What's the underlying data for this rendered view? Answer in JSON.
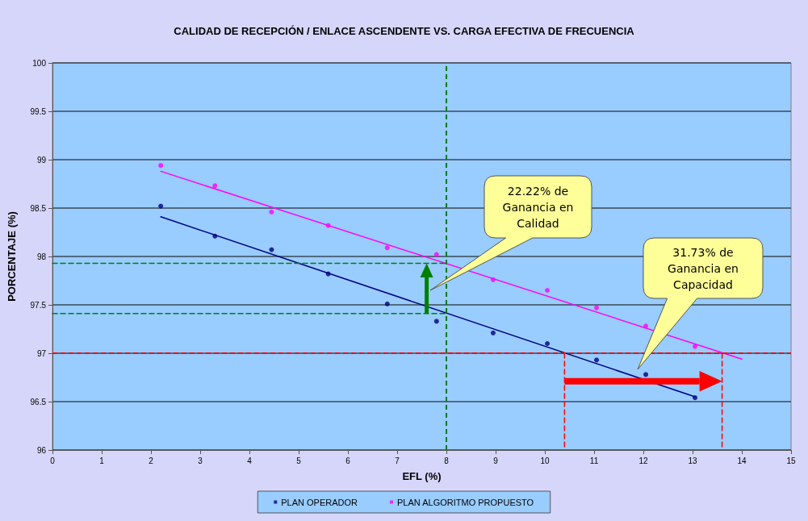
{
  "chart_data": {
    "type": "scatter",
    "title": "CALIDAD DE RECEPCIÓN / ENLACE ASCENDENTE VS. CARGA EFECTIVA DE FRECUENCIA",
    "xlabel": "EFL (%)",
    "ylabel": "PORCENTAJE (%)",
    "xlim": [
      0,
      15
    ],
    "xticks": [
      0,
      1,
      2,
      3,
      4,
      5,
      6,
      7,
      8,
      9,
      10,
      11,
      12,
      13,
      14,
      15
    ],
    "ylim": [
      96,
      100
    ],
    "yticks": [
      96,
      96.5,
      97,
      97.5,
      98,
      98.5,
      99,
      99.5,
      100
    ],
    "grid": "y",
    "legend": "bottom",
    "marker": "circle",
    "series": [
      {
        "name": "PLAN OPERADOR",
        "color": "#000080",
        "x": [
          2.2,
          3.3,
          4.45,
          5.6,
          6.8,
          7.8,
          8.95,
          10.05,
          11.05,
          12.05,
          13.05
        ],
        "values": [
          98.52,
          98.21,
          98.07,
          97.82,
          97.51,
          97.33,
          97.21,
          97.1,
          96.93,
          96.78,
          96.54
        ]
      },
      {
        "name": "PLAN ALGORITMO PROPUESTO",
        "color": "#ff00ff",
        "x": [
          2.2,
          3.3,
          4.45,
          5.6,
          6.8,
          7.8,
          8.95,
          10.05,
          11.05,
          12.05,
          13.05
        ],
        "values": [
          98.94,
          98.73,
          98.46,
          98.32,
          98.09,
          98.02,
          97.76,
          97.65,
          97.47,
          97.28,
          97.07
        ]
      },
      {
        "type": "line",
        "marker": "none",
        "color": "#000080",
        "line_style": "solid",
        "x": [
          2.2,
          13.05
        ],
        "values": [
          98.41,
          96.55
        ]
      },
      {
        "type": "line",
        "marker": "none",
        "color": "#ff00ff",
        "line_style": "solid",
        "x": [
          2.2,
          14.0
        ],
        "values": [
          98.88,
          96.94
        ]
      },
      {
        "type": "line",
        "marker": "none",
        "color": "#008000",
        "line_style": "dashed",
        "x": [
          0,
          8
        ],
        "values": [
          97.41,
          97.41
        ]
      },
      {
        "type": "line",
        "marker": "none",
        "color": "#008000",
        "line_style": "dashed",
        "x": [
          0,
          8
        ],
        "values": [
          97.93,
          97.93
        ]
      },
      {
        "type": "line",
        "marker": "none",
        "color": "#ff0000",
        "line_style": "dashed",
        "x": [
          10.4,
          10.4
        ],
        "values": [
          97,
          96
        ]
      },
      {
        "type": "line",
        "marker": "none",
        "color": "#ff0000",
        "line_style": "dashed",
        "x": [
          13.6,
          13.6
        ],
        "values": [
          97,
          96
        ]
      }
    ],
    "ref_lines": [
      {
        "axis": "y",
        "value": 97,
        "color": "#ff0000",
        "line_style": "dashed"
      },
      {
        "axis": "x",
        "value": 8,
        "color": "#008000",
        "line_style": "dashed"
      }
    ],
    "annotations": [
      "22.22% de Ganancia en Calidad",
      "31.73% de Ganancia en Capacidad"
    ]
  }
}
